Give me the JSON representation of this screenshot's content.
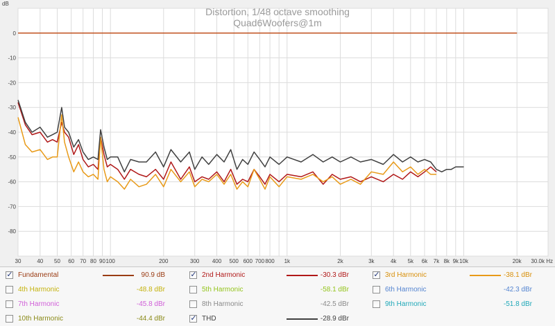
{
  "chart_data": {
    "type": "line",
    "title": "Distortion, 1/48 octave smoothing",
    "subtitle": "Quad6Woofers@1m",
    "ylabel": "dB",
    "xlabel": "",
    "x_scale": "log",
    "xlim": [
      30,
      30000
    ],
    "ylim": [
      -90,
      10
    ],
    "y_ticks": [
      0,
      -10,
      -20,
      -30,
      -40,
      -50,
      -60,
      -70,
      -80
    ],
    "x_ticks": [
      {
        "v": 30,
        "t": "30"
      },
      {
        "v": 40,
        "t": "40"
      },
      {
        "v": 50,
        "t": "50"
      },
      {
        "v": 60,
        "t": "60"
      },
      {
        "v": 70,
        "t": "70"
      },
      {
        "v": 80,
        "t": "80"
      },
      {
        "v": 90,
        "t": "90"
      },
      {
        "v": 100,
        "t": "100"
      },
      {
        "v": 200,
        "t": "200"
      },
      {
        "v": 300,
        "t": "300"
      },
      {
        "v": 400,
        "t": "400"
      },
      {
        "v": 500,
        "t": "500"
      },
      {
        "v": 600,
        "t": "600"
      },
      {
        "v": 700,
        "t": "700"
      },
      {
        "v": 800,
        "t": "800"
      },
      {
        "v": 1000,
        "t": "1k"
      },
      {
        "v": 2000,
        "t": "2k"
      },
      {
        "v": 3000,
        "t": "3k"
      },
      {
        "v": 4000,
        "t": "4k"
      },
      {
        "v": 5000,
        "t": "5k"
      },
      {
        "v": 6000,
        "t": "6k"
      },
      {
        "v": 7000,
        "t": "7k"
      },
      {
        "v": 8000,
        "t": "8k"
      },
      {
        "v": 9000,
        "t": "9k"
      },
      {
        "v": 10000,
        "t": "10k"
      },
      {
        "v": 20000,
        "t": "20k"
      },
      {
        "v": 30000,
        "t": "30.0k Hz"
      }
    ],
    "grid": true,
    "legend_placement": "bottom",
    "series": [
      {
        "name": "Fundamental",
        "color": "#c0501e",
        "x": [
          30,
          20000
        ],
        "y": [
          0,
          0
        ]
      },
      {
        "name": "2nd Harmonic",
        "color": "#b01818",
        "x": [
          30,
          33,
          36,
          40,
          44,
          47,
          50,
          53,
          55,
          58,
          62,
          66,
          70,
          75,
          80,
          85,
          88,
          92,
          96,
          100,
          110,
          120,
          130,
          145,
          160,
          180,
          200,
          220,
          250,
          280,
          300,
          330,
          360,
          400,
          440,
          480,
          520,
          560,
          600,
          650,
          700,
          750,
          800,
          900,
          1000,
          1200,
          1400,
          1600,
          1800,
          2000,
          2300,
          2600,
          3000,
          3500,
          4000,
          4500,
          5000,
          5500,
          6000,
          6500,
          7000
        ],
        "y": [
          -28,
          -37,
          -41,
          -40,
          -44,
          -43,
          -44,
          -36,
          -40,
          -42,
          -49,
          -45,
          -51,
          -54,
          -53,
          -55,
          -42,
          -49,
          -54,
          -53,
          -55,
          -59,
          -55,
          -57,
          -58,
          -55,
          -59,
          -52,
          -59,
          -54,
          -60,
          -58,
          -59,
          -56,
          -60,
          -55,
          -61,
          -59,
          -60,
          -55,
          -58,
          -61,
          -57,
          -60,
          -57,
          -58,
          -56,
          -61,
          -57,
          -59,
          -58,
          -60,
          -58,
          -60,
          -57,
          -59,
          -56,
          -58,
          -56,
          -54,
          -56
        ]
      },
      {
        "name": "3rd Harmonic",
        "color": "#e89a18",
        "x": [
          30,
          33,
          36,
          40,
          44,
          47,
          50,
          53,
          55,
          58,
          62,
          66,
          70,
          75,
          80,
          85,
          88,
          92,
          96,
          100,
          110,
          120,
          130,
          145,
          160,
          180,
          200,
          220,
          250,
          280,
          300,
          330,
          360,
          400,
          440,
          480,
          520,
          560,
          600,
          650,
          700,
          750,
          800,
          900,
          1000,
          1200,
          1400,
          1600,
          1800,
          2000,
          2300,
          2600,
          3000,
          3500,
          4000,
          4500,
          5000,
          5500,
          6000,
          6500,
          7000
        ],
        "y": [
          -34,
          -45,
          -48,
          -47,
          -51,
          -50,
          -50,
          -33,
          -44,
          -50,
          -56,
          -52,
          -56,
          -58,
          -57,
          -59,
          -42,
          -55,
          -60,
          -58,
          -60,
          -63,
          -59,
          -62,
          -61,
          -57,
          -62,
          -55,
          -60,
          -56,
          -62,
          -59,
          -60,
          -57,
          -61,
          -57,
          -63,
          -60,
          -62,
          -55,
          -59,
          -63,
          -58,
          -62,
          -58,
          -59,
          -57,
          -60,
          -58,
          -61,
          -59,
          -61,
          -56,
          -57,
          -52,
          -56,
          -54,
          -57,
          -55,
          -57,
          -57
        ]
      },
      {
        "name": "THD",
        "color": "#404040",
        "x": [
          30,
          33,
          36,
          40,
          44,
          47,
          50,
          53,
          55,
          58,
          62,
          66,
          70,
          75,
          80,
          85,
          88,
          92,
          96,
          100,
          110,
          120,
          130,
          145,
          160,
          180,
          200,
          220,
          250,
          280,
          300,
          330,
          360,
          400,
          440,
          480,
          520,
          560,
          600,
          650,
          700,
          750,
          800,
          900,
          1000,
          1200,
          1400,
          1600,
          1800,
          2000,
          2300,
          2600,
          3000,
          3500,
          4000,
          4500,
          5000,
          5500,
          6000,
          6500,
          7000,
          7500,
          8000,
          8500,
          9000,
          9500,
          10000
        ],
        "y": [
          -27,
          -36,
          -40,
          -38,
          -42,
          -41,
          -40,
          -30,
          -38,
          -40,
          -46,
          -43,
          -48,
          -51,
          -50,
          -51,
          -39,
          -46,
          -51,
          -50,
          -50,
          -56,
          -51,
          -52,
          -52,
          -48,
          -54,
          -47,
          -52,
          -48,
          -55,
          -50,
          -53,
          -49,
          -52,
          -47,
          -55,
          -51,
          -53,
          -48,
          -51,
          -54,
          -50,
          -53,
          -50,
          -52,
          -49,
          -52,
          -50,
          -52,
          -50,
          -52,
          -51,
          -53,
          -49,
          -52,
          -50,
          -52,
          -51,
          -52,
          -55,
          -56,
          -55,
          -55,
          -54,
          -54,
          -54
        ]
      }
    ]
  },
  "legend": {
    "items": [
      {
        "label": "Fundamental",
        "value": "90.9 dB",
        "checked": true,
        "color": "#9a3c14",
        "text_color": "#9a3c14",
        "swatch": true
      },
      {
        "label": "2nd Harmonic",
        "value": "-30.3 dBr",
        "checked": true,
        "color": "#b01818",
        "text_color": "#b01818",
        "swatch": true
      },
      {
        "label": "3rd Harmonic",
        "value": "-38.1 dBr",
        "checked": true,
        "color": "#e89a18",
        "text_color": "#d8900c",
        "swatch": true
      },
      {
        "label": "4th Harmonic",
        "value": "-48.8 dBr",
        "checked": false,
        "color": "#c4b20c",
        "text_color": "#c4b20c",
        "swatch": false
      },
      {
        "label": "5th Harmonic",
        "value": "-58.1 dBr",
        "checked": false,
        "color": "#94c41c",
        "text_color": "#94c41c",
        "swatch": false
      },
      {
        "label": "6th Harmonic",
        "value": "-42.3 dBr",
        "checked": false,
        "color": "#5484d0",
        "text_color": "#5484d0",
        "swatch": false
      },
      {
        "label": "7th Harmonic",
        "value": "-45.8 dBr",
        "checked": false,
        "color": "#d060d8",
        "text_color": "#d060d8",
        "swatch": false
      },
      {
        "label": "8th Harmonic",
        "value": "-42.5 dBr",
        "checked": false,
        "color": "#8a8a8a",
        "text_color": "#8a8a8a",
        "swatch": false
      },
      {
        "label": "9th Harmonic",
        "value": "-51.8 dBr",
        "checked": false,
        "color": "#20a8b8",
        "text_color": "#20a8b8",
        "swatch": false
      },
      {
        "label": "10th Harmonic",
        "value": "-44.4 dBr",
        "checked": false,
        "color": "#8a8a18",
        "text_color": "#8a8a18",
        "swatch": false
      },
      {
        "label": "THD",
        "value": "-28.9 dBr",
        "checked": true,
        "color": "#404040",
        "text_color": "#404040",
        "swatch": true
      }
    ]
  }
}
